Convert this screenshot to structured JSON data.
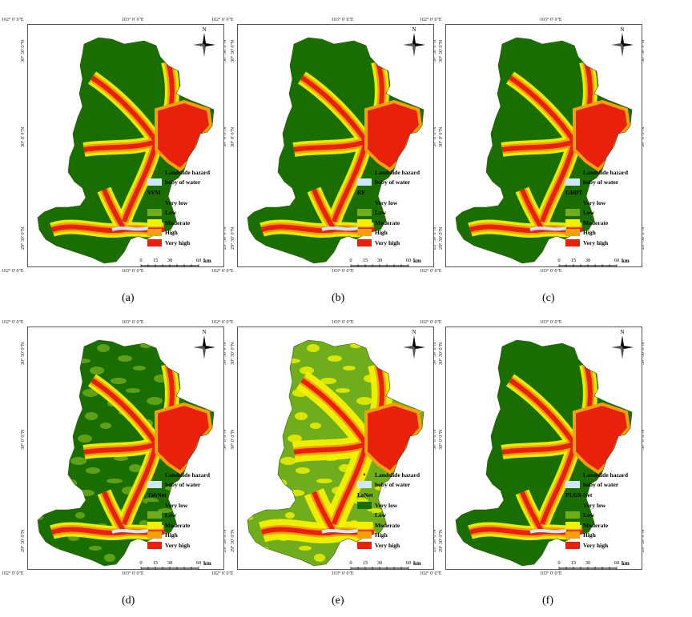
{
  "coordinates": {
    "top_left": "102° 0' 0\"E",
    "top_right": "103° 0' 0\"E",
    "bottom_left": "102° 0' 0\"E",
    "bottom_right": "103° 0' 0\"E",
    "lat_top": "30° 30' 0\"N",
    "lat_mid": "30° 0' 0\"N",
    "lat_bottom": "29° 30' 0\"N"
  },
  "north_label": "N",
  "legend": {
    "hazard": "Landslide hazard",
    "water": "boby of water",
    "classes": [
      {
        "label": "Very low",
        "color": "#1a6e00"
      },
      {
        "label": "Low",
        "color": "#70ad1c"
      },
      {
        "label": "Moderate",
        "color": "#f2f200"
      },
      {
        "label": "High",
        "color": "#f5a00a"
      },
      {
        "label": "Very high",
        "color": "#e8200c"
      }
    ],
    "water_color": "#cde8fa"
  },
  "scale": {
    "ticks": [
      "0",
      "15",
      "30",
      "60"
    ],
    "unit": "km"
  },
  "panels": [
    {
      "model": "SVM",
      "caption": "(a)"
    },
    {
      "model": "RF",
      "caption": "(b)"
    },
    {
      "model": "GBDT",
      "caption": "(c)"
    },
    {
      "model": "TabNet",
      "caption": "(d)"
    },
    {
      "model": "LeNet",
      "caption": "(e)"
    },
    {
      "model": "PLGS-Net",
      "caption": "(f)"
    }
  ]
}
